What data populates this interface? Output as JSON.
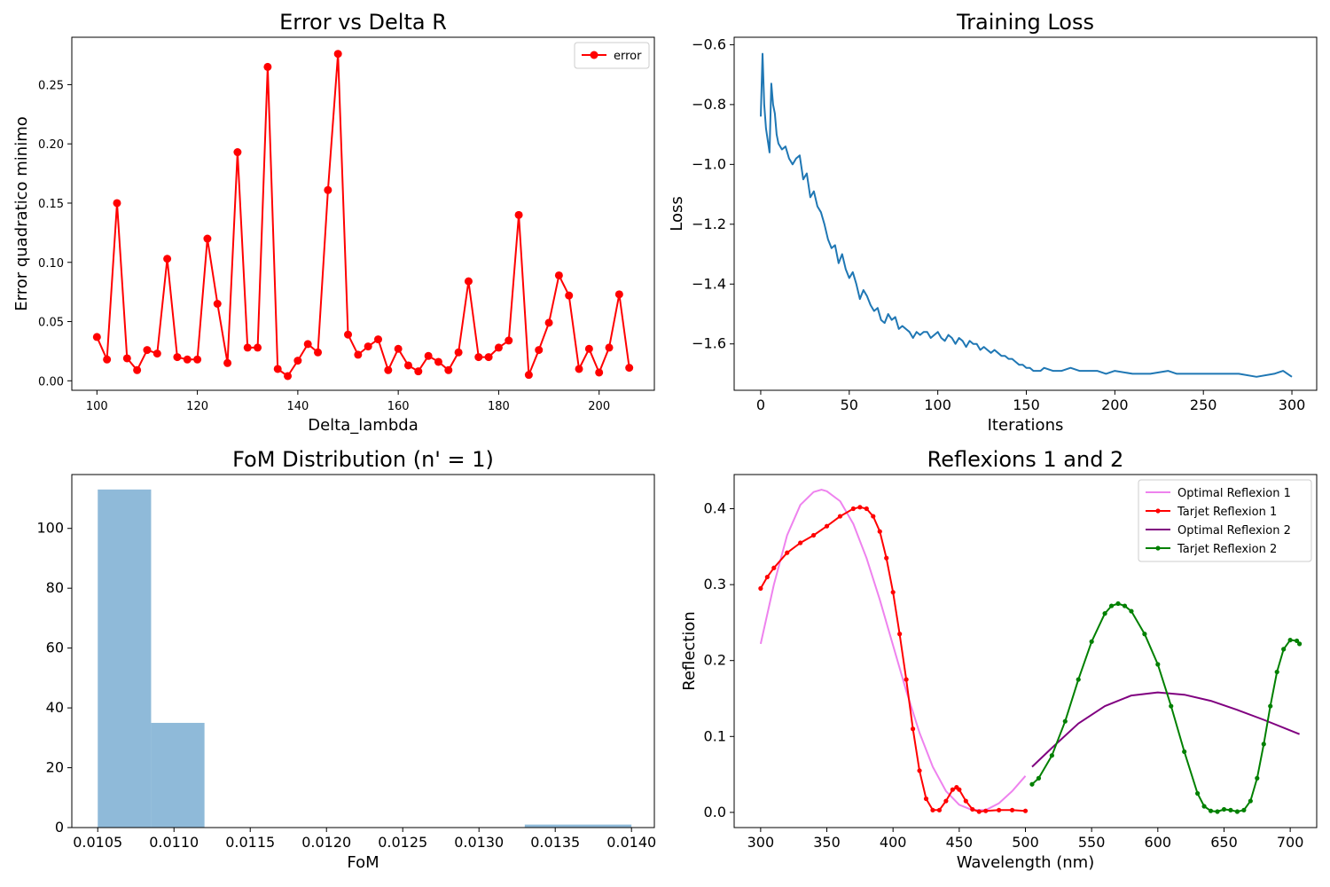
{
  "chart_data": [
    {
      "type": "line",
      "title": "Error vs Delta R",
      "xlabel": "Delta_lambda",
      "ylabel": "Error quadratico minimo",
      "xlim": [
        95,
        211
      ],
      "ylim": [
        -0.008,
        0.29
      ],
      "xticks": [
        100,
        120,
        140,
        160,
        180,
        200
      ],
      "yticks": [
        0.0,
        0.05,
        0.1,
        0.15,
        0.2,
        0.25
      ],
      "ytick_labels": [
        "0.00",
        "0.05",
        "0.10",
        "0.15",
        "0.20",
        "0.25"
      ],
      "legend": "top-right",
      "series": [
        {
          "name": "error",
          "color": "#ff0000",
          "marker": "circle",
          "x": [
            100,
            102,
            104,
            106,
            108,
            110,
            112,
            114,
            116,
            118,
            120,
            122,
            124,
            126,
            128,
            130,
            132,
            134,
            136,
            138,
            140,
            142,
            144,
            146,
            148,
            150,
            152,
            154,
            156,
            158,
            160,
            162,
            164,
            166,
            168,
            170,
            172,
            174,
            176,
            178,
            180,
            182,
            184,
            186,
            188,
            190,
            192,
            194,
            196,
            198,
            200,
            202,
            204,
            206
          ],
          "values": [
            0.037,
            0.018,
            0.15,
            0.019,
            0.009,
            0.026,
            0.023,
            0.103,
            0.02,
            0.018,
            0.018,
            0.12,
            0.065,
            0.015,
            0.193,
            0.028,
            0.028,
            0.265,
            0.01,
            0.004,
            0.017,
            0.031,
            0.024,
            0.161,
            0.276,
            0.039,
            0.022,
            0.029,
            0.035,
            0.009,
            0.027,
            0.013,
            0.008,
            0.021,
            0.016,
            0.009,
            0.024,
            0.084,
            0.02,
            0.02,
            0.028,
            0.034,
            0.14,
            0.005,
            0.026,
            0.049,
            0.089,
            0.072,
            0.01,
            0.027,
            0.007,
            0.028,
            0.073,
            0.011
          ]
        }
      ]
    },
    {
      "type": "line",
      "title": "Training Loss",
      "xlabel": "Iterations",
      "ylabel": "Loss",
      "xlim": [
        -15,
        314
      ],
      "ylim": [
        -1.755,
        -0.575
      ],
      "xticks": [
        0,
        50,
        100,
        150,
        200,
        250,
        300
      ],
      "yticks": [
        -1.6,
        -1.4,
        -1.2,
        -1.0,
        -0.8,
        -0.6
      ],
      "ytick_labels": [
        "−1.6",
        "−1.4",
        "−1.2",
        "−1.0",
        "−0.8",
        "−0.6"
      ],
      "series": [
        {
          "color": "#1f77b4",
          "x": [
            0,
            1,
            2,
            3,
            4,
            5,
            6,
            7,
            8,
            9,
            10,
            12,
            14,
            16,
            18,
            20,
            22,
            24,
            26,
            28,
            30,
            32,
            34,
            36,
            38,
            40,
            42,
            44,
            46,
            48,
            50,
            52,
            54,
            56,
            58,
            60,
            62,
            64,
            66,
            68,
            70,
            72,
            74,
            76,
            78,
            80,
            82,
            84,
            86,
            88,
            90,
            92,
            94,
            96,
            98,
            100,
            102,
            104,
            106,
            108,
            110,
            112,
            114,
            116,
            118,
            120,
            122,
            124,
            126,
            128,
            130,
            132,
            134,
            136,
            138,
            140,
            142,
            144,
            146,
            148,
            150,
            152,
            154,
            156,
            158,
            160,
            165,
            170,
            175,
            180,
            185,
            190,
            195,
            200,
            210,
            220,
            230,
            235,
            240,
            250,
            260,
            270,
            280,
            290,
            295,
            300
          ],
          "values": [
            -0.84,
            -0.63,
            -0.8,
            -0.88,
            -0.92,
            -0.96,
            -0.73,
            -0.8,
            -0.83,
            -0.9,
            -0.93,
            -0.95,
            -0.94,
            -0.98,
            -1.0,
            -0.98,
            -0.97,
            -1.05,
            -1.03,
            -1.11,
            -1.09,
            -1.14,
            -1.16,
            -1.2,
            -1.25,
            -1.28,
            -1.27,
            -1.33,
            -1.3,
            -1.35,
            -1.38,
            -1.36,
            -1.4,
            -1.45,
            -1.42,
            -1.44,
            -1.47,
            -1.49,
            -1.48,
            -1.52,
            -1.53,
            -1.5,
            -1.52,
            -1.51,
            -1.55,
            -1.54,
            -1.55,
            -1.56,
            -1.58,
            -1.56,
            -1.57,
            -1.56,
            -1.56,
            -1.58,
            -1.57,
            -1.56,
            -1.58,
            -1.59,
            -1.57,
            -1.58,
            -1.6,
            -1.58,
            -1.59,
            -1.61,
            -1.59,
            -1.6,
            -1.6,
            -1.62,
            -1.61,
            -1.62,
            -1.63,
            -1.62,
            -1.63,
            -1.64,
            -1.64,
            -1.65,
            -1.65,
            -1.66,
            -1.67,
            -1.67,
            -1.68,
            -1.68,
            -1.69,
            -1.69,
            -1.69,
            -1.68,
            -1.69,
            -1.69,
            -1.68,
            -1.69,
            -1.69,
            -1.69,
            -1.7,
            -1.69,
            -1.7,
            -1.7,
            -1.69,
            -1.7,
            -1.7,
            -1.7,
            -1.7,
            -1.7,
            -1.71,
            -1.7,
            -1.69,
            -1.71
          ]
        }
      ]
    },
    {
      "type": "bar",
      "title": "FoM Distribution (n' = 1)",
      "xlabel": "FoM",
      "ylabel": "",
      "xlim": [
        0.01033,
        0.01415
      ],
      "ylim": [
        0,
        118
      ],
      "xticks": [
        0.0105,
        0.011,
        0.0115,
        0.012,
        0.0125,
        0.013,
        0.0135,
        0.014
      ],
      "xtick_labels": [
        "0.0105",
        "0.0110",
        "0.0115",
        "0.0120",
        "0.0125",
        "0.0130",
        "0.0135",
        "0.0140"
      ],
      "yticks": [
        0,
        20,
        40,
        60,
        80,
        100
      ],
      "bar_color": "#8fbad9",
      "bin_edges": [
        0.0105,
        0.01085,
        0.0112,
        0.01155,
        0.0119,
        0.01225,
        0.0126,
        0.01295,
        0.0133,
        0.01365,
        0.014
      ],
      "values": [
        113,
        35,
        0,
        0,
        0,
        0,
        0,
        0,
        1,
        1
      ]
    },
    {
      "type": "line",
      "title": "Reflexions 1 and 2",
      "xlabel": "Wavelength (nm)",
      "ylabel": "Reflection",
      "xlim": [
        280,
        720
      ],
      "ylim": [
        -0.02,
        0.445
      ],
      "xticks": [
        300,
        350,
        400,
        450,
        500,
        550,
        600,
        650,
        700
      ],
      "yticks": [
        0.0,
        0.1,
        0.2,
        0.3,
        0.4
      ],
      "ytick_labels": [
        "0.0",
        "0.1",
        "0.2",
        "0.3",
        "0.4"
      ],
      "legend": "top-right",
      "series": [
        {
          "name": "Optimal Reflexion 1",
          "color": "#ee82ee",
          "marker": "none",
          "x": [
            300,
            310,
            320,
            330,
            340,
            346,
            350,
            360,
            370,
            380,
            390,
            400,
            410,
            420,
            430,
            440,
            450,
            460,
            470,
            480,
            490,
            500
          ],
          "values": [
            0.222,
            0.3,
            0.365,
            0.405,
            0.422,
            0.425,
            0.423,
            0.41,
            0.38,
            0.335,
            0.28,
            0.22,
            0.16,
            0.105,
            0.06,
            0.028,
            0.01,
            0.003,
            0.003,
            0.012,
            0.028,
            0.048
          ]
        },
        {
          "name": "Tarjet Reflexion 1",
          "color": "#ff0000",
          "marker": "dot",
          "x": [
            300,
            305,
            310,
            320,
            330,
            340,
            350,
            360,
            370,
            375,
            380,
            385,
            390,
            395,
            400,
            405,
            410,
            415,
            420,
            425,
            430,
            435,
            440,
            445,
            448,
            450,
            455,
            460,
            465,
            470,
            480,
            490,
            500
          ],
          "values": [
            0.295,
            0.31,
            0.322,
            0.342,
            0.355,
            0.365,
            0.377,
            0.39,
            0.4,
            0.402,
            0.4,
            0.39,
            0.37,
            0.335,
            0.29,
            0.235,
            0.175,
            0.11,
            0.055,
            0.018,
            0.003,
            0.003,
            0.015,
            0.03,
            0.033,
            0.03,
            0.015,
            0.004,
            0.001,
            0.002,
            0.003,
            0.003,
            0.002
          ]
        },
        {
          "name": "Optimal Reflexion 2",
          "color": "#800080",
          "marker": "none",
          "x": [
            505,
            520,
            540,
            560,
            580,
            600,
            620,
            640,
            660,
            680,
            707
          ],
          "values": [
            0.06,
            0.085,
            0.117,
            0.14,
            0.154,
            0.158,
            0.155,
            0.147,
            0.135,
            0.122,
            0.103
          ]
        },
        {
          "name": "Tarjet Reflexion 2",
          "color": "#008000",
          "marker": "dot",
          "x": [
            505,
            510,
            520,
            530,
            540,
            550,
            560,
            565,
            570,
            575,
            580,
            590,
            600,
            610,
            620,
            630,
            635,
            640,
            645,
            650,
            655,
            660,
            665,
            670,
            675,
            680,
            685,
            690,
            695,
            700,
            705,
            707
          ],
          "values": [
            0.037,
            0.045,
            0.075,
            0.12,
            0.175,
            0.225,
            0.262,
            0.272,
            0.275,
            0.272,
            0.265,
            0.235,
            0.195,
            0.14,
            0.08,
            0.025,
            0.008,
            0.002,
            0.001,
            0.004,
            0.003,
            0.001,
            0.003,
            0.015,
            0.045,
            0.09,
            0.14,
            0.185,
            0.215,
            0.227,
            0.226,
            0.222
          ]
        }
      ]
    }
  ]
}
